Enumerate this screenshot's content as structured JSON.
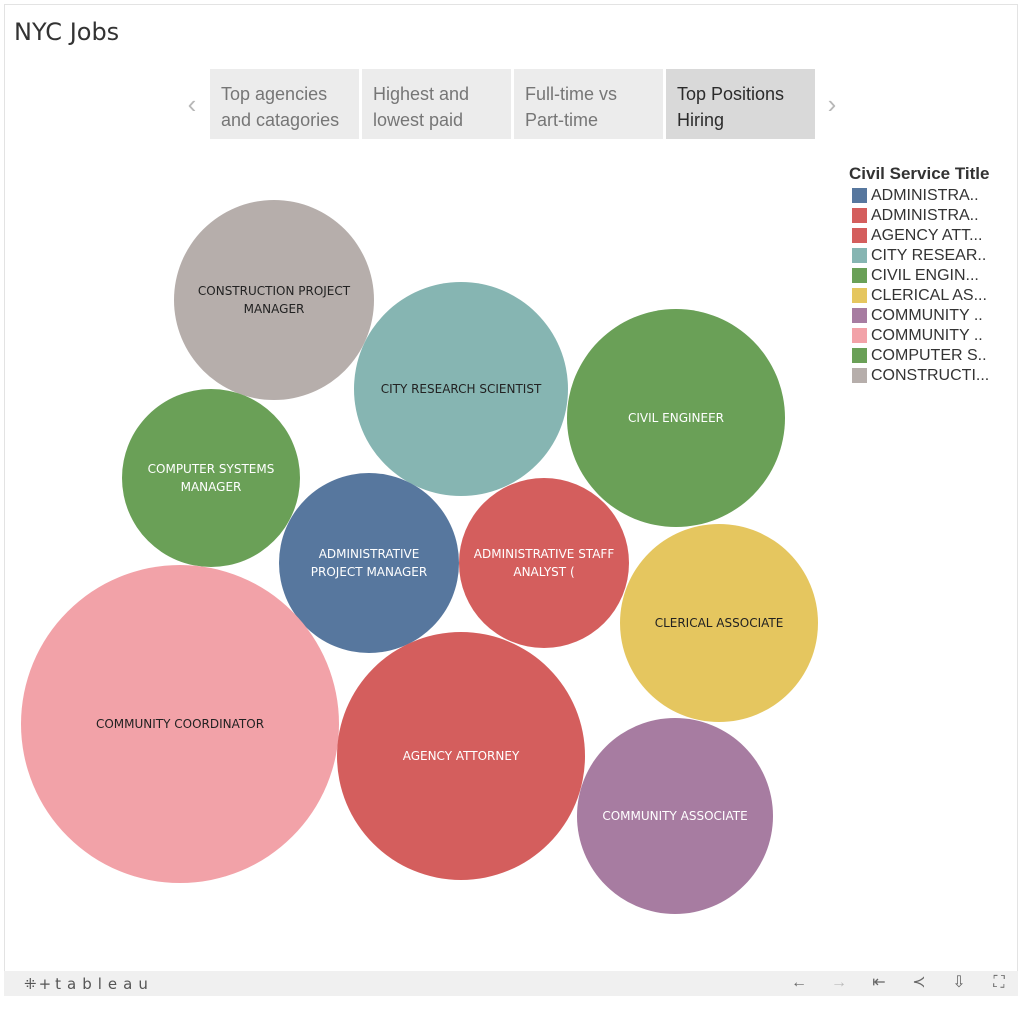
{
  "app": {
    "title": "NYC Jobs",
    "brand": "tableau",
    "brand_mark": "⁜+"
  },
  "story": {
    "prev_icon": "‹",
    "next_icon": "›",
    "points": [
      {
        "label": "Top agencies and catagories",
        "active": false
      },
      {
        "label": "Highest and lowest paid",
        "active": false
      },
      {
        "label": "Full-time vs Part-time",
        "active": false
      },
      {
        "label": "Top Positions Hiring",
        "active": true
      }
    ]
  },
  "legend": {
    "title": "Civil Service Title",
    "items": [
      {
        "label": "ADMINISTRA..",
        "color": "#57779e"
      },
      {
        "label": "ADMINISTRA..",
        "color": "#d45e5d"
      },
      {
        "label": "AGENCY ATT...",
        "color": "#d45e5d"
      },
      {
        "label": "CITY RESEAR..",
        "color": "#86b5b2"
      },
      {
        "label": "CIVIL ENGIN...",
        "color": "#6aa057"
      },
      {
        "label": "CLERICAL AS...",
        "color": "#e5c65f"
      },
      {
        "label": "COMMUNITY ..",
        "color": "#a77ca1"
      },
      {
        "label": "COMMUNITY ..",
        "color": "#f2a2a8"
      },
      {
        "label": "COMPUTER S..",
        "color": "#6aa057"
      },
      {
        "label": "CONSTRUCTI...",
        "color": "#b6aeab"
      }
    ]
  },
  "chart_data": {
    "type": "bubble",
    "title": "",
    "series": [
      {
        "name": "CONSTRUCTION PROJECT MANAGER",
        "lines": [
          "CONSTRUCTION PROJECT",
          "MANAGER"
        ],
        "color": "#b6aeab",
        "text_color": "#222222"
      },
      {
        "name": "CITY RESEARCH SCIENTIST",
        "lines": [
          "CITY RESEARCH SCIENTIST"
        ],
        "color": "#86b5b2",
        "text_color": "#222222"
      },
      {
        "name": "CIVIL ENGINEER",
        "lines": [
          "CIVIL ENGINEER"
        ],
        "color": "#6aa057",
        "text_color": "#ffffff"
      },
      {
        "name": "COMPUTER SYSTEMS MANAGER",
        "lines": [
          "COMPUTER SYSTEMS",
          "MANAGER"
        ],
        "color": "#6aa057",
        "text_color": "#ffffff"
      },
      {
        "name": "ADMINISTRATIVE PROJECT MANAGER",
        "lines": [
          "ADMINISTRATIVE",
          "PROJECT MANAGER"
        ],
        "color": "#57779e",
        "text_color": "#ffffff"
      },
      {
        "name": "ADMINISTRATIVE STAFF ANALYST (",
        "lines": [
          "ADMINISTRATIVE STAFF",
          "ANALYST ("
        ],
        "color": "#d45e5d",
        "text_color": "#ffffff"
      },
      {
        "name": "CLERICAL ASSOCIATE",
        "lines": [
          "CLERICAL ASSOCIATE"
        ],
        "color": "#e5c65f",
        "text_color": "#222222"
      },
      {
        "name": "COMMUNITY COORDINATOR",
        "lines": [
          "COMMUNITY COORDINATOR"
        ],
        "color": "#f2a2a8",
        "text_color": "#222222"
      },
      {
        "name": "AGENCY ATTORNEY",
        "lines": [
          "AGENCY ATTORNEY"
        ],
        "color": "#d45e5d",
        "text_color": "#ffffff"
      },
      {
        "name": "COMMUNITY ASSOCIATE",
        "lines": [
          "COMMUNITY ASSOCIATE"
        ],
        "color": "#a77ca1",
        "text_color": "#ffffff"
      }
    ]
  },
  "toolbar": {
    "undo_icon": "←",
    "redo_icon": "→",
    "revert_icon": "⇤",
    "share_icon": "≺",
    "download_icon": "⇩",
    "fullscreen_icon": "⛶"
  }
}
